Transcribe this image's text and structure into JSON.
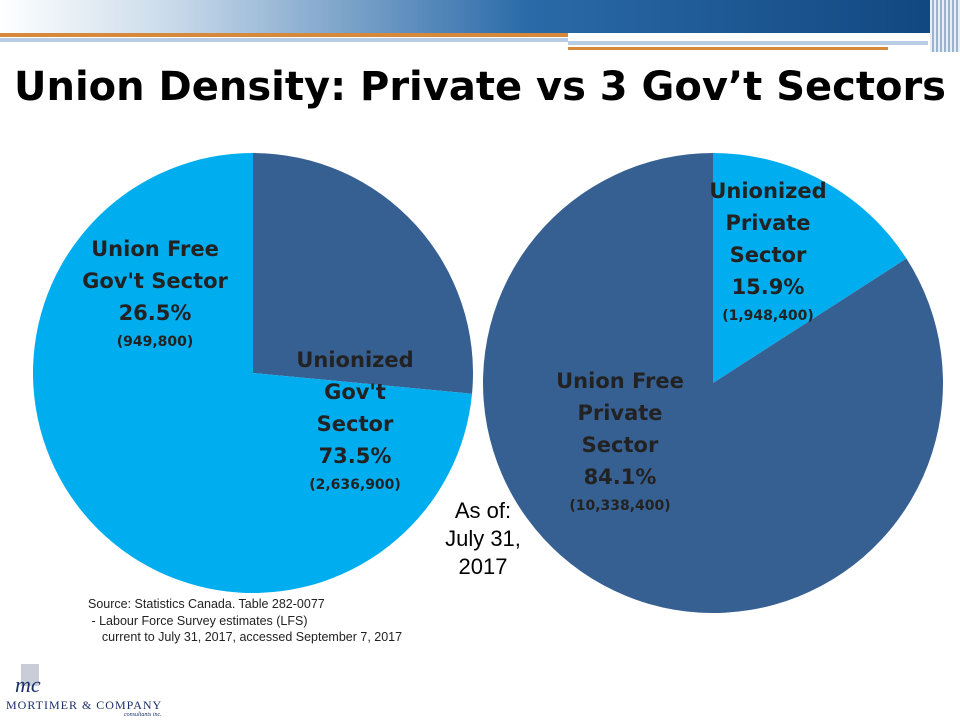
{
  "title": "Union Density: Private vs 3 Gov’t Sectors",
  "as_of": [
    "As of:",
    "July 31,",
    "2017"
  ],
  "source_lines": [
    "Source: Statistics Canada. Table 282-0077",
    " - Labour Force Survey estimates (LFS)",
    "    current to July 31, 2017, accessed September 7, 2017"
  ],
  "logo": {
    "name": "MORTIMER & COMPANY",
    "subtitle": "consultants inc.",
    "mark": "mc"
  },
  "colors": {
    "light_blue": "#00aeef",
    "dark_blue": "#376092",
    "title": "#000000"
  },
  "chart_data": [
    {
      "type": "pie",
      "title": "",
      "slices": [
        {
          "label": [
            "Union Free",
            "Gov't Sector"
          ],
          "percent_label": "26.5%",
          "count_label": "(949,800)",
          "value": 949800,
          "percent": 26.5,
          "color": "#376092"
        },
        {
          "label": [
            "Unionized",
            "Gov't",
            "Sector"
          ],
          "percent_label": "73.5%",
          "count_label": "(2,636,900)",
          "value": 2636900,
          "percent": 73.5,
          "color": "#00aeef"
        }
      ]
    },
    {
      "type": "pie",
      "title": "",
      "slices": [
        {
          "label": [
            "Unionized",
            "Private",
            "Sector"
          ],
          "percent_label": "15.9%",
          "count_label": "(1,948,400)",
          "value": 1948400,
          "percent": 15.9,
          "color": "#00aeef"
        },
        {
          "label": [
            "Union Free",
            "Private",
            "Sector"
          ],
          "percent_label": "84.1%",
          "count_label": "(10,338,400)",
          "value": 10338400,
          "percent": 84.1,
          "color": "#376092"
        }
      ]
    }
  ]
}
